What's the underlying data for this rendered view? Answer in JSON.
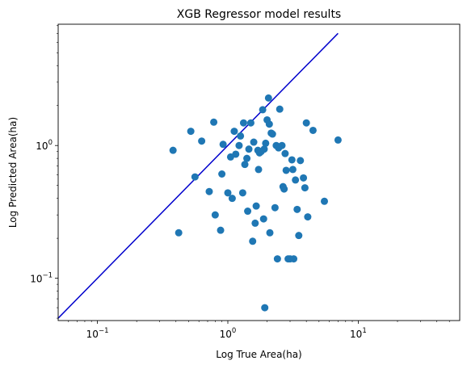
{
  "chart_data": {
    "type": "scatter",
    "title": "XGB Regressor model results",
    "xlabel": "Log True Area(ha)",
    "ylabel": "Log Predicted Area(ha)",
    "xscale": "log",
    "yscale": "log",
    "xlim": [
      0.05,
      60
    ],
    "ylim": [
      0.048,
      8.2
    ],
    "grid": false,
    "legend": "none",
    "x_ticks": [
      {
        "value": 0.1,
        "base": "10",
        "exp": "−1"
      },
      {
        "value": 1,
        "base": "10",
        "exp": "0"
      },
      {
        "value": 10,
        "base": "10",
        "exp": "1"
      }
    ],
    "y_ticks": [
      {
        "value": 0.1,
        "base": "10",
        "exp": "−1"
      },
      {
        "value": 1,
        "base": "10",
        "exp": "0"
      }
    ],
    "reference_line": {
      "x": [
        0.05,
        7
      ],
      "y": [
        0.05,
        7
      ],
      "color": "#0000cc"
    },
    "marker_color": "#1f77b4",
    "x": [
      0.38,
      0.42,
      0.52,
      0.56,
      0.63,
      0.72,
      0.78,
      0.8,
      0.88,
      0.9,
      0.92,
      1.0,
      1.05,
      1.08,
      1.12,
      1.15,
      1.22,
      1.25,
      1.3,
      1.32,
      1.35,
      1.4,
      1.42,
      1.45,
      1.5,
      1.55,
      1.58,
      1.62,
      1.65,
      1.7,
      1.72,
      1.75,
      1.8,
      1.85,
      1.88,
      1.9,
      1.92,
      1.95,
      2.0,
      2.05,
      2.08,
      2.1,
      2.15,
      2.2,
      2.3,
      2.35,
      2.4,
      2.45,
      2.5,
      2.6,
      2.65,
      2.7,
      2.75,
      2.8,
      2.9,
      3.0,
      3.1,
      3.15,
      3.2,
      3.3,
      3.4,
      3.5,
      3.6,
      3.8,
      3.9,
      4.0,
      4.1,
      4.5,
      5.5,
      7.0
    ],
    "y": [
      0.92,
      0.22,
      1.28,
      0.58,
      1.08,
      0.45,
      1.5,
      0.3,
      0.23,
      0.61,
      1.02,
      0.44,
      0.82,
      0.4,
      1.28,
      0.86,
      1.0,
      1.18,
      0.44,
      1.48,
      0.72,
      0.8,
      0.32,
      0.94,
      1.48,
      0.19,
      1.06,
      0.26,
      0.35,
      0.92,
      0.66,
      0.88,
      0.9,
      1.86,
      0.28,
      0.94,
      0.06,
      1.04,
      1.56,
      2.28,
      1.45,
      0.22,
      1.24,
      1.22,
      0.34,
      1.0,
      0.14,
      0.96,
      1.88,
      1.0,
      0.49,
      0.47,
      0.87,
      0.65,
      0.14,
      0.14,
      0.78,
      0.66,
      0.14,
      0.55,
      0.33,
      0.21,
      0.77,
      0.57,
      0.48,
      1.48,
      0.29,
      1.3,
      0.38,
      1.1
    ]
  }
}
